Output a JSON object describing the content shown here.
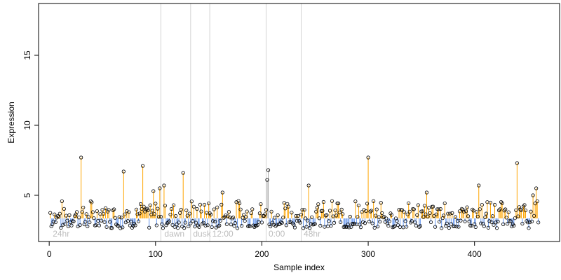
{
  "chart_data": {
    "type": "scatter",
    "title": "",
    "xlabel": "Sample index",
    "ylabel": "Expression",
    "xlim": [
      -10,
      480
    ],
    "ylim": [
      1.7,
      18.7
    ],
    "x_ticks": [
      0,
      100,
      200,
      300,
      400
    ],
    "y_ticks": [
      5,
      10,
      15
    ],
    "grid": false,
    "legend": "none",
    "baseline": 3.35,
    "colors": {
      "above": "#FFA500",
      "below": "#6495ED",
      "highlight": "#A9A9A9",
      "divider": "#D3D3D3",
      "point_stroke": "#000000",
      "condition_text": "#BDBDBD"
    },
    "condition_dividers": [
      105,
      133,
      151,
      204,
      237
    ],
    "condition_labels": [
      {
        "text": "24hr",
        "x": 2
      },
      {
        "text": "dawn",
        "x": 107
      },
      {
        "text": "dusk",
        "x": 134
      },
      {
        "text": "12:00",
        "x": 152
      },
      {
        "text": "0:00",
        "x": 205
      },
      {
        "text": "48hr",
        "x": 238
      }
    ],
    "highlight_points": [
      {
        "x": 205,
        "y": 6.1
      },
      {
        "x": 206,
        "y": 6.8
      }
    ],
    "peaks": [
      {
        "x": 30,
        "y": 7.7
      },
      {
        "x": 70,
        "y": 6.7
      },
      {
        "x": 88,
        "y": 7.1
      },
      {
        "x": 98,
        "y": 5.3
      },
      {
        "x": 104,
        "y": 5.5
      },
      {
        "x": 108,
        "y": 5.7
      },
      {
        "x": 126,
        "y": 6.6
      },
      {
        "x": 163,
        "y": 5.2
      },
      {
        "x": 244,
        "y": 5.7
      },
      {
        "x": 300,
        "y": 7.7
      },
      {
        "x": 355,
        "y": 5.2
      },
      {
        "x": 404,
        "y": 5.7
      },
      {
        "x": 440,
        "y": 7.3
      },
      {
        "x": 455,
        "y": 5.0
      },
      {
        "x": 458,
        "y": 5.5
      }
    ],
    "series": [
      {
        "x_start": 1,
        "x_end": 460,
        "y_min": 2.6,
        "y_max": 4.4,
        "seed": 7
      }
    ]
  }
}
